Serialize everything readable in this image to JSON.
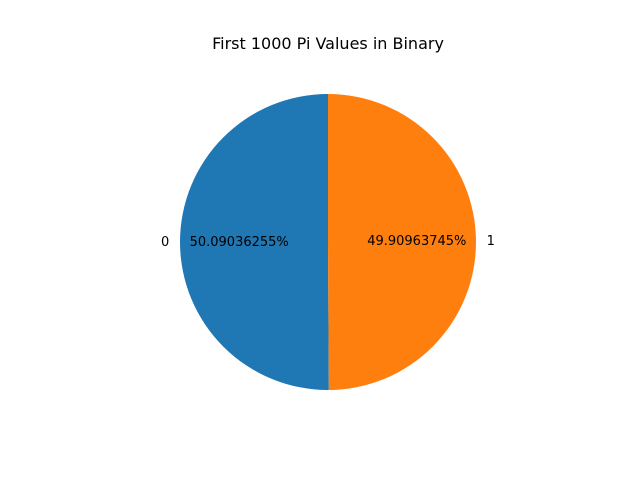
{
  "chart_data": {
    "type": "pie",
    "title": "First 1000 Pi Values in Binary",
    "labels": [
      "0",
      "1"
    ],
    "values": [
      50.09036255,
      49.90963745
    ],
    "percent_labels": [
      "50.09036255%",
      "49.90963745%"
    ],
    "colors": [
      "#1f77b4",
      "#ff7f0e"
    ],
    "legend": "none"
  }
}
